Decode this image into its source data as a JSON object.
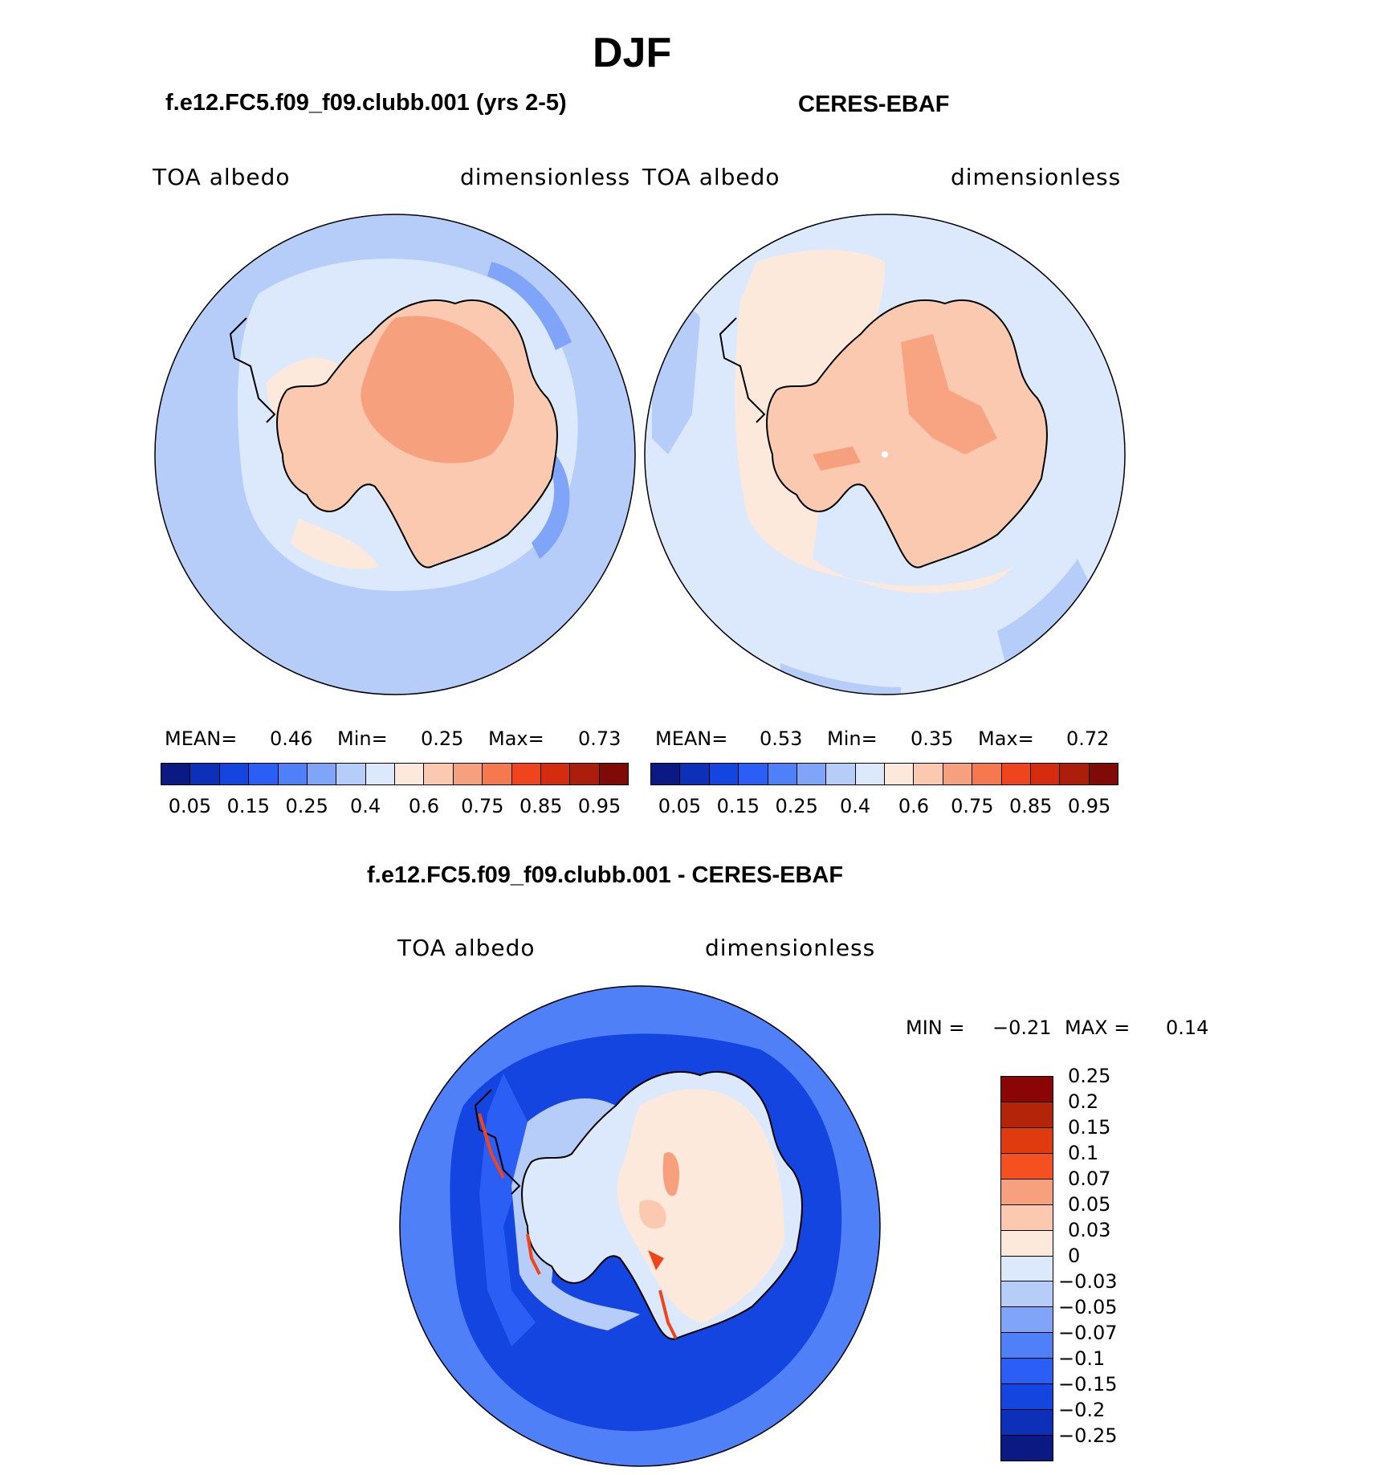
{
  "page_title": "DJF",
  "panels": {
    "model": {
      "title": "f.e12.FC5.f09_f09.clubb.001 (yrs 2-5)",
      "var_left": "TOA albedo",
      "var_right": "dimensionless",
      "stats": {
        "mean_label": "MEAN=",
        "mean": "0.46",
        "min_label": "Min=",
        "min": "0.25",
        "max_label": "Max=",
        "max": "0.73"
      }
    },
    "obs": {
      "title": "CERES-EBAF",
      "var_left": "TOA albedo",
      "var_right": "dimensionless",
      "stats": {
        "mean_label": "MEAN=",
        "mean": "0.53",
        "min_label": "Min=",
        "min": "0.35",
        "max_label": "Max=",
        "max": "0.72"
      }
    },
    "diff": {
      "title": "f.e12.FC5.f09_f09.clubb.001 - CERES-EBAF",
      "var_left": "TOA albedo",
      "var_right": "dimensionless",
      "stats": {
        "min_label": "MIN =",
        "min": "−0.21",
        "max_label": "MAX =",
        "max": "0.14"
      }
    }
  },
  "colorbars": {
    "abs": {
      "colors": [
        "#0a1a82",
        "#0d30b8",
        "#1545e0",
        "#2a5ef5",
        "#4f80f7",
        "#7fa4f8",
        "#b6cdfa",
        "#dce9fc",
        "#fde9dc",
        "#fbc9b0",
        "#f7a07e",
        "#f5784f",
        "#f0441d",
        "#d52c10",
        "#ac1e0c",
        "#7f0a08"
      ],
      "ticks": [
        "0.05",
        "0.15",
        "0.25",
        "0.4",
        "0.6",
        "0.75",
        "0.85",
        "0.95"
      ]
    },
    "diff": {
      "colors": [
        "#0a1a82",
        "#0d30b8",
        "#1545e0",
        "#2a5ef5",
        "#4f80f7",
        "#7fa4f8",
        "#b6cdfa",
        "#dce9fc",
        "#fde9dc",
        "#fbc9b0",
        "#f7a07e",
        "#f5501f",
        "#e03a10",
        "#b42408",
        "#8a0606"
      ],
      "ticks": [
        "−0.25",
        "−0.2",
        "−0.15",
        "−0.1",
        "−0.07",
        "−0.05",
        "−0.03",
        "0",
        "0.03",
        "0.05",
        "0.07",
        "0.1",
        "0.15",
        "0.2",
        "0.25"
      ]
    }
  }
}
